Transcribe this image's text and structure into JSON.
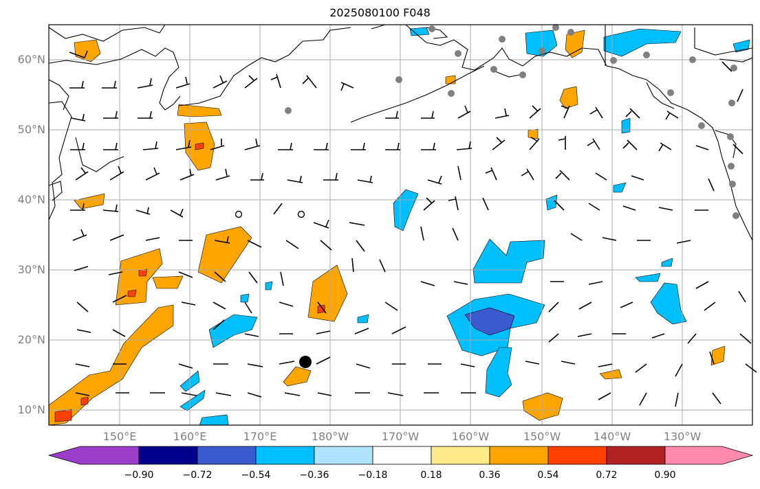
{
  "title": "2025080100 F048",
  "map": {
    "lat_labels": [
      "60°N",
      "50°N",
      "40°N",
      "30°N",
      "20°N",
      "10°N"
    ],
    "lon_labels": [
      "150°E",
      "160°E",
      "170°E",
      "180°W",
      "170°W",
      "160°W",
      "150°W",
      "140°W",
      "130°W"
    ],
    "gridline_color": "#aaaaaa",
    "coastline_color": "#000000",
    "marker": "storm-center-dot"
  },
  "colorbar": {
    "labels": [
      "−0.90",
      "−0.72",
      "−0.54",
      "−0.36",
      "−0.18",
      "0.18",
      "0.36",
      "0.54",
      "0.72",
      "0.90"
    ],
    "colors": [
      "#9b3dc8",
      "#00008b",
      "#3a5bd0",
      "#00bfff",
      "#afe3fb",
      "#ffffff",
      "#ffe98a",
      "#ffa500",
      "#ff4000",
      "#b22222",
      "#ff8aae"
    ]
  }
}
